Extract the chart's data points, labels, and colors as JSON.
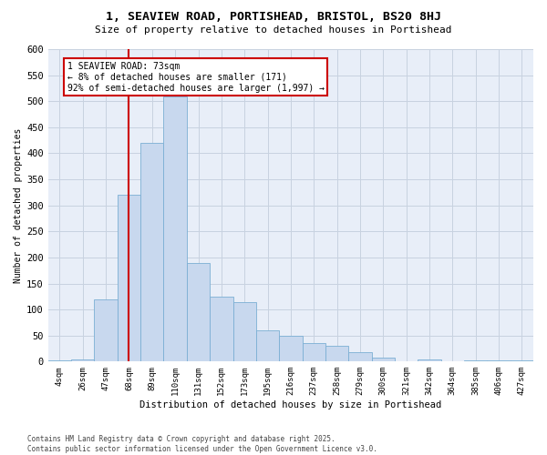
{
  "title_line1": "1, SEAVIEW ROAD, PORTISHEAD, BRISTOL, BS20 8HJ",
  "title_line2": "Size of property relative to detached houses in Portishead",
  "xlabel": "Distribution of detached houses by size in Portishead",
  "ylabel": "Number of detached properties",
  "categories": [
    "4sqm",
    "26sqm",
    "47sqm",
    "68sqm",
    "89sqm",
    "110sqm",
    "131sqm",
    "152sqm",
    "173sqm",
    "195sqm",
    "216sqm",
    "237sqm",
    "258sqm",
    "279sqm",
    "300sqm",
    "321sqm",
    "342sqm",
    "364sqm",
    "385sqm",
    "406sqm",
    "427sqm"
  ],
  "values": [
    3,
    4,
    120,
    320,
    420,
    510,
    190,
    125,
    115,
    60,
    50,
    35,
    30,
    18,
    8,
    0,
    4,
    0,
    2,
    2,
    2
  ],
  "bar_color": "#c8d8ee",
  "bar_edge_color": "#7bafd4",
  "grid_color": "#c8d2e0",
  "background_color": "#e8eef8",
  "vline_position": 3,
  "vline_color": "#cc0000",
  "annotation_text": "1 SEAVIEW ROAD: 73sqm\n← 8% of detached houses are smaller (171)\n92% of semi-detached houses are larger (1,997) →",
  "annotation_box_facecolor": "#ffffff",
  "annotation_box_edgecolor": "#cc0000",
  "footer_line1": "Contains HM Land Registry data © Crown copyright and database right 2025.",
  "footer_line2": "Contains public sector information licensed under the Open Government Licence v3.0.",
  "ylim": [
    0,
    600
  ],
  "yticks": [
    0,
    50,
    100,
    150,
    200,
    250,
    300,
    350,
    400,
    450,
    500,
    550,
    600
  ]
}
